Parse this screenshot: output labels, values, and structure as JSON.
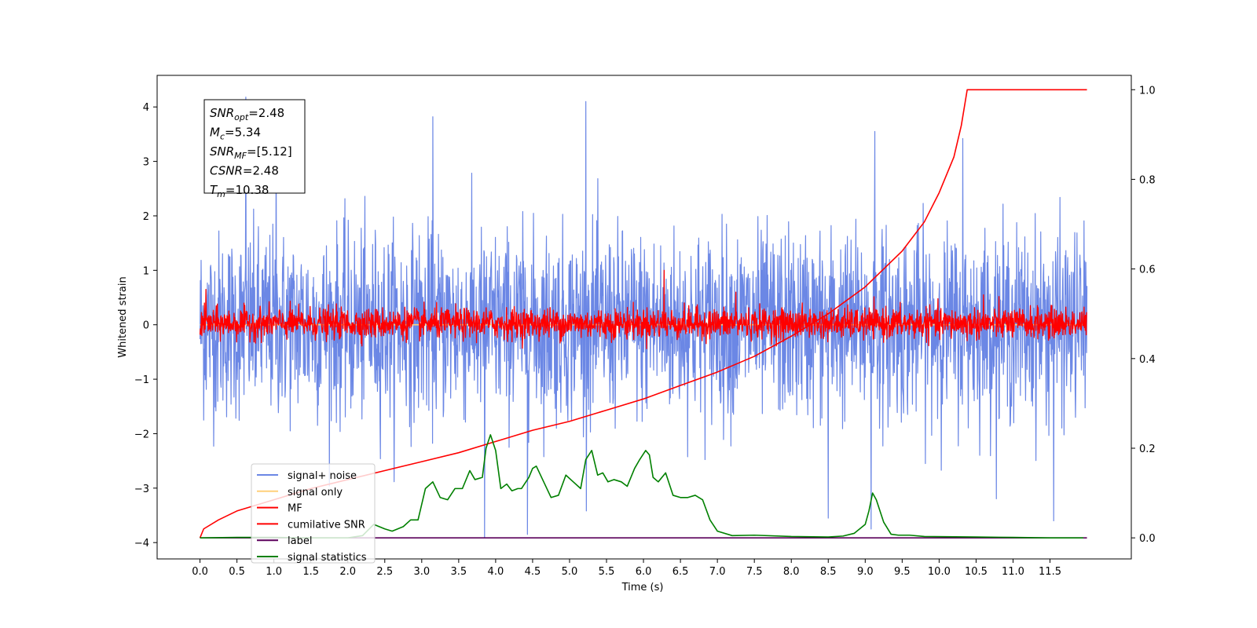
{
  "chart_data": {
    "type": "line",
    "xlabel": "Time (s)",
    "ylabel": "Whitened strain",
    "y2label": "",
    "xlim": [
      -0.58,
      12.6
    ],
    "ylim": [
      -4.3,
      4.58
    ],
    "y2lim": [
      -0.047,
      1.032
    ],
    "x_ticks": [
      "0.0",
      "0.5",
      "1.0",
      "1.5",
      "2.0",
      "2.5",
      "3.0",
      "3.5",
      "4.0",
      "4.5",
      "5.0",
      "5.5",
      "6.0",
      "6.5",
      "7.0",
      "7.5",
      "8.0",
      "8.5",
      "9.0",
      "9.5",
      "10.0",
      "10.5",
      "11.0",
      "11.5"
    ],
    "y_ticks": [
      "4",
      "3",
      "2",
      "1",
      "0",
      "−1",
      "−2",
      "−3",
      "−4"
    ],
    "y2_ticks": [
      "1.0",
      "0.8",
      "0.6",
      "0.4",
      "0.2",
      "0.0"
    ],
    "legend_position": "lower left",
    "annotation": {
      "lines": [
        {
          "main": "SNR",
          "sub": "opt",
          "value": "=2.48"
        },
        {
          "main": "M",
          "sub": "c",
          "value": "=5.34"
        },
        {
          "main": "SNR",
          "sub": "MF",
          "value": "=[5.12]"
        },
        {
          "main": "CSNR",
          "sub": "",
          "value": "=2.48"
        },
        {
          "main": "T",
          "sub": "m",
          "value": "=10.38"
        }
      ]
    },
    "series": [
      {
        "name": "signal+ noise",
        "color": "#6b87e5",
        "axis": "left",
        "kind": "noise",
        "x_range": [
          0.0,
          12.0
        ],
        "mean": 0.0,
        "band_typical": [
          -1.7,
          1.7
        ],
        "extremes": [
          {
            "x": 0.62,
            "y": 4.18
          },
          {
            "x": 1.03,
            "y": 3.87
          },
          {
            "x": 3.15,
            "y": 3.82
          },
          {
            "x": 5.22,
            "y": 4.1
          },
          {
            "x": 9.13,
            "y": 3.55
          },
          {
            "x": 10.32,
            "y": 3.42
          },
          {
            "x": 3.85,
            "y": -3.9
          },
          {
            "x": 4.43,
            "y": -3.85
          },
          {
            "x": 8.5,
            "y": -3.55
          },
          {
            "x": 9.08,
            "y": -3.75
          },
          {
            "x": 11.55,
            "y": -3.6
          }
        ]
      },
      {
        "name": "signal only",
        "color": "#ffd07a",
        "axis": "left",
        "kind": "flat",
        "x": [
          0.0,
          12.0
        ],
        "y": [
          0.0,
          0.0
        ]
      },
      {
        "name": "MF",
        "color": "#ff0000",
        "axis": "left",
        "kind": "noise",
        "x_range": [
          0.0,
          12.0
        ],
        "mean": 0.0,
        "band_typical": [
          -0.25,
          0.3
        ],
        "extremes": [
          {
            "x": 6.28,
            "y": 1.0
          },
          {
            "x": 0.08,
            "y": 0.65
          },
          {
            "x": 7.25,
            "y": 0.6
          },
          {
            "x": 10.6,
            "y": 0.55
          }
        ]
      },
      {
        "name": "cumilative SNR",
        "color": "#ff0000",
        "axis": "right",
        "kind": "line",
        "x": [
          0.0,
          0.05,
          0.25,
          0.5,
          1.0,
          1.5,
          2.0,
          2.5,
          3.0,
          3.5,
          4.0,
          4.5,
          5.0,
          5.5,
          6.0,
          6.5,
          7.0,
          7.5,
          8.0,
          8.5,
          9.0,
          9.5,
          9.8,
          10.0,
          10.2,
          10.3,
          10.38,
          12.0
        ],
        "y": [
          0.0,
          0.02,
          0.04,
          0.06,
          0.085,
          0.11,
          0.13,
          0.15,
          0.17,
          0.19,
          0.215,
          0.24,
          0.26,
          0.285,
          0.31,
          0.34,
          0.37,
          0.405,
          0.45,
          0.5,
          0.56,
          0.64,
          0.705,
          0.77,
          0.85,
          0.92,
          1.0,
          1.0
        ]
      },
      {
        "name": "label",
        "color": "#5b005b",
        "axis": "right",
        "kind": "line",
        "x": [
          0.0,
          12.0
        ],
        "y": [
          0.0,
          0.0
        ]
      },
      {
        "name": "signal statistics",
        "color": "#008000",
        "axis": "right",
        "kind": "line",
        "x": [
          0.0,
          0.5,
          1.0,
          1.5,
          2.0,
          2.2,
          2.35,
          2.5,
          2.6,
          2.75,
          2.85,
          2.95,
          3.05,
          3.15,
          3.25,
          3.35,
          3.45,
          3.55,
          3.65,
          3.72,
          3.82,
          3.87,
          3.93,
          4.0,
          4.07,
          4.15,
          4.22,
          4.3,
          4.35,
          4.45,
          4.5,
          4.55,
          4.65,
          4.75,
          4.85,
          4.95,
          5.05,
          5.15,
          5.22,
          5.3,
          5.38,
          5.45,
          5.52,
          5.6,
          5.7,
          5.78,
          5.88,
          5.95,
          6.03,
          6.08,
          6.13,
          6.2,
          6.3,
          6.4,
          6.5,
          6.6,
          6.7,
          6.8,
          6.9,
          7.0,
          7.2,
          7.5,
          8.0,
          8.5,
          8.7,
          8.85,
          9.0,
          9.05,
          9.1,
          9.15,
          9.25,
          9.35,
          9.45,
          9.6,
          9.8,
          10.5,
          11.0,
          11.5,
          11.95
        ],
        "y": [
          0.0,
          0.001,
          0.001,
          0.0,
          0.0,
          0.005,
          0.03,
          0.02,
          0.015,
          0.025,
          0.04,
          0.04,
          0.11,
          0.125,
          0.09,
          0.085,
          0.11,
          0.11,
          0.15,
          0.13,
          0.135,
          0.2,
          0.23,
          0.195,
          0.11,
          0.12,
          0.105,
          0.11,
          0.11,
          0.135,
          0.155,
          0.16,
          0.125,
          0.09,
          0.095,
          0.14,
          0.125,
          0.11,
          0.175,
          0.195,
          0.14,
          0.145,
          0.125,
          0.13,
          0.125,
          0.115,
          0.155,
          0.175,
          0.195,
          0.185,
          0.135,
          0.125,
          0.145,
          0.095,
          0.09,
          0.09,
          0.095,
          0.085,
          0.04,
          0.015,
          0.005,
          0.006,
          0.003,
          0.002,
          0.004,
          0.01,
          0.03,
          0.06,
          0.1,
          0.085,
          0.035,
          0.008,
          0.006,
          0.006,
          0.003,
          0.002,
          0.001,
          0.0,
          0.0
        ]
      }
    ]
  }
}
